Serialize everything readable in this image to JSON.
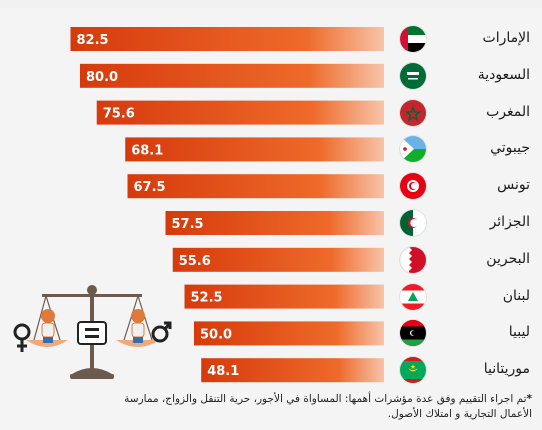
{
  "chart_data": {
    "type": "bar",
    "orientation": "horizontal",
    "categories": [
      "الإمارات",
      "السعودية",
      "المغرب",
      "جيبوتي",
      "تونس",
      "الجزائر",
      "البحرين",
      "لبنان",
      "ليبيا",
      "موريتانيا"
    ],
    "values": [
      82.5,
      80.0,
      75.6,
      68.1,
      67.5,
      57.5,
      55.6,
      52.5,
      50.0,
      48.1
    ],
    "value_labels": [
      "82.5",
      "80.0",
      "75.6",
      "68.1",
      "67.5",
      "57.5",
      "55.6",
      "52.5",
      "50.0",
      "48.1"
    ],
    "xlim": [
      0,
      100
    ],
    "grid": false,
    "legend": "none",
    "colors": {
      "bar_start": "#d63a0c",
      "bar_end": "#f7c4a8"
    }
  },
  "flags": [
    "uae-flag-icon",
    "saudi-flag-icon",
    "morocco-flag-icon",
    "djibouti-flag-icon",
    "tunisia-flag-icon",
    "algeria-flag-icon",
    "bahrain-flag-icon",
    "lebanon-flag-icon",
    "libya-flag-icon",
    "mauritania-flag-icon"
  ],
  "illustration": {
    "icons": [
      "scales-icon",
      "female-symbol-icon",
      "male-symbol-icon",
      "equals-icon"
    ]
  },
  "footnote": {
    "star": "*",
    "line1": "تم اجراء التقييم وفق عدة مؤشرات أهمها: المساواة في الأجور، حرية التنقل والزواج، ممارسة",
    "line2": "الأعمال التجارية و امتلاك الأصول."
  }
}
